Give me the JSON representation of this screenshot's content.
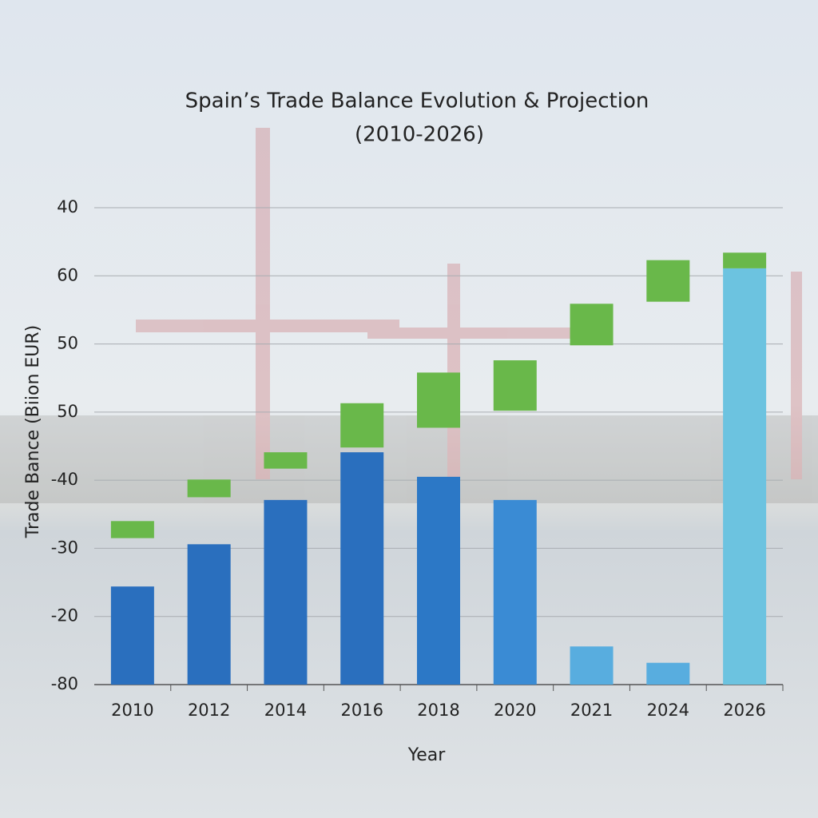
{
  "chart_data": {
    "type": "bar",
    "title": [
      "Spain’s Trade Balance Evolution & Projection",
      "(2010-2026)"
    ],
    "x_label": "Year",
    "y_label": "Trade Bance (Biion EUR)",
    "categories": [
      "2010",
      "2012",
      "2014",
      "2016",
      "2018",
      "2020",
      "2021",
      "2024",
      "2026"
    ],
    "ylim": [
      0,
      7
    ],
    "yticks": [
      {
        "value": 0,
        "label": "-80"
      },
      {
        "value": 1,
        "label": "-20"
      },
      {
        "value": 2,
        "label": "-30"
      },
      {
        "value": 3,
        "label": "-40"
      },
      {
        "value": 4,
        "label": "50"
      },
      {
        "value": 5,
        "label": "50"
      },
      {
        "value": 6,
        "label": "60"
      },
      {
        "value": 7,
        "label": "40"
      }
    ],
    "grid": true,
    "series": [
      {
        "colors": [
          "#2a6fbe",
          "#2a6fbe",
          "#2a6fbe",
          "#2a6fbe",
          "#2c78c6",
          "#3a8bd4",
          "#58addf",
          "#58addf",
          "#6cc3e0"
        ],
        "values": [
          1.44,
          2.06,
          2.71,
          3.41,
          3.05,
          2.71,
          0.56,
          0.32,
          6.11
        ]
      },
      {
        "color": "#69b84a",
        "values": [
          [
            2.15,
            2.4
          ],
          [
            2.75,
            3.01
          ],
          [
            3.17,
            3.41
          ],
          [
            3.48,
            4.13
          ],
          [
            3.77,
            4.58
          ],
          [
            4.02,
            4.76
          ],
          [
            4.98,
            5.59
          ],
          [
            5.62,
            6.23
          ],
          [
            6.11,
            6.34
          ]
        ]
      }
    ]
  }
}
